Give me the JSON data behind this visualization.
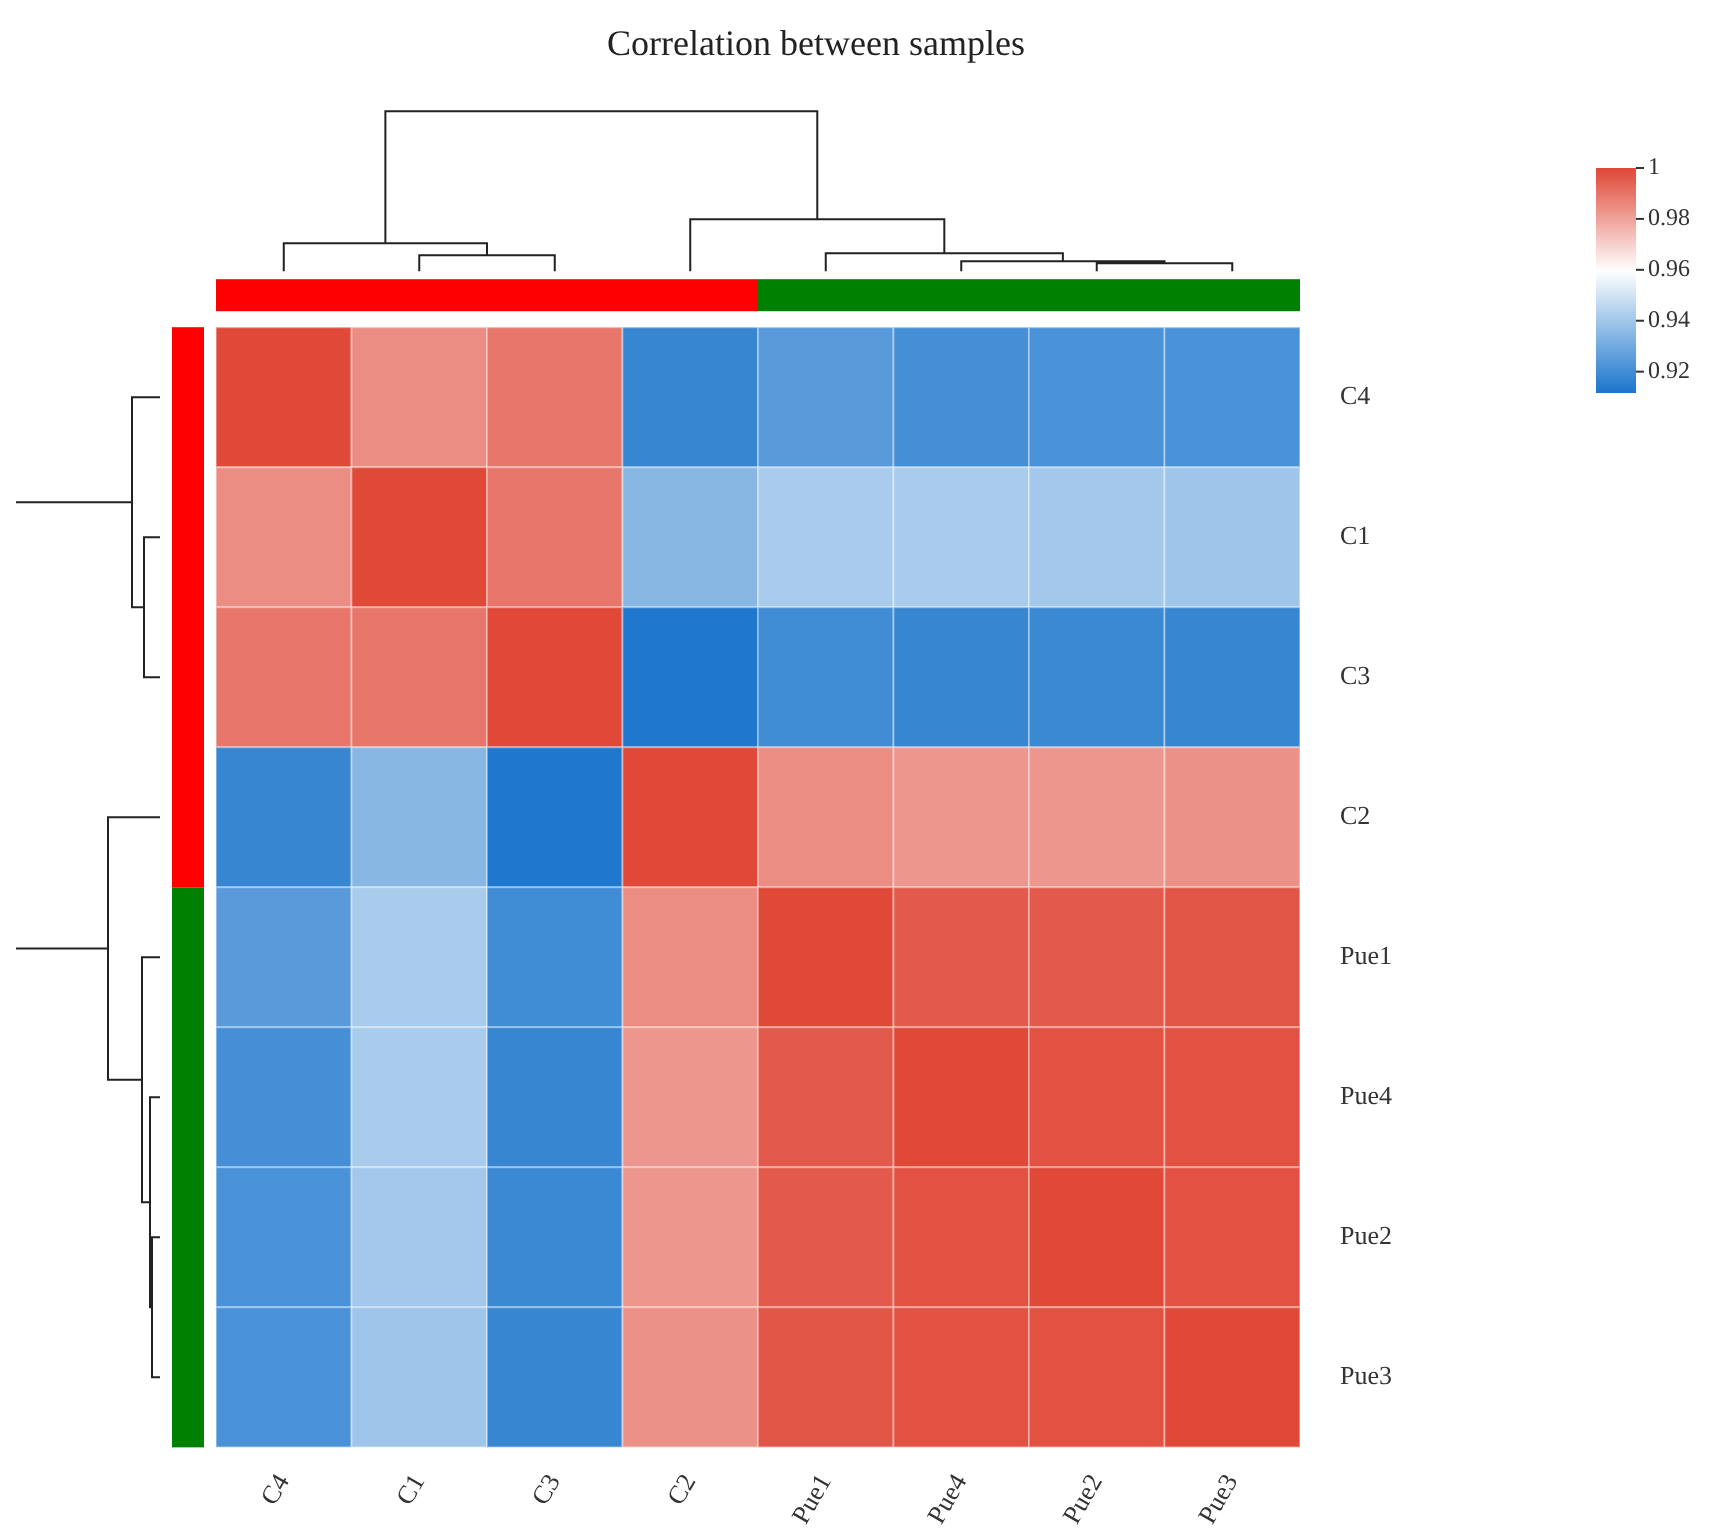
{
  "chart_data": {
    "type": "heatmap",
    "title": "Correlation between samples",
    "categories": [
      "C4",
      "C1",
      "C3",
      "C2",
      "Pue1",
      "Pue4",
      "Pue2",
      "Pue3"
    ],
    "y_categories": [
      "C4",
      "C1",
      "C3",
      "C2",
      "Pue1",
      "Pue4",
      "Pue2",
      "Pue3"
    ],
    "cells": [
      [
        1,
        0.985,
        0.99,
        0.918,
        0.925,
        0.921,
        0.922,
        0.922
      ],
      [
        0.985,
        1,
        0.99,
        0.935,
        0.942,
        0.942,
        0.941,
        0.94
      ],
      [
        0.99,
        0.99,
        1,
        0.913,
        0.92,
        0.918,
        0.919,
        0.918
      ],
      [
        0.918,
        0.935,
        0.913,
        1,
        0.985,
        0.983,
        0.983,
        0.984
      ],
      [
        0.925,
        0.942,
        0.92,
        0.985,
        1,
        0.996,
        0.996,
        0.997
      ],
      [
        0.921,
        0.942,
        0.918,
        0.983,
        0.996,
        1,
        0.998,
        0.998
      ],
      [
        0.922,
        0.941,
        0.919,
        0.983,
        0.996,
        0.998,
        1,
        0.998
      ],
      [
        0.922,
        0.94,
        0.918,
        0.984,
        0.997,
        0.998,
        0.998,
        1
      ]
    ],
    "clim": [
      0.912,
      1
    ],
    "cticks": [
      0.92,
      0.94,
      0.96,
      0.98,
      1
    ]
  }
}
